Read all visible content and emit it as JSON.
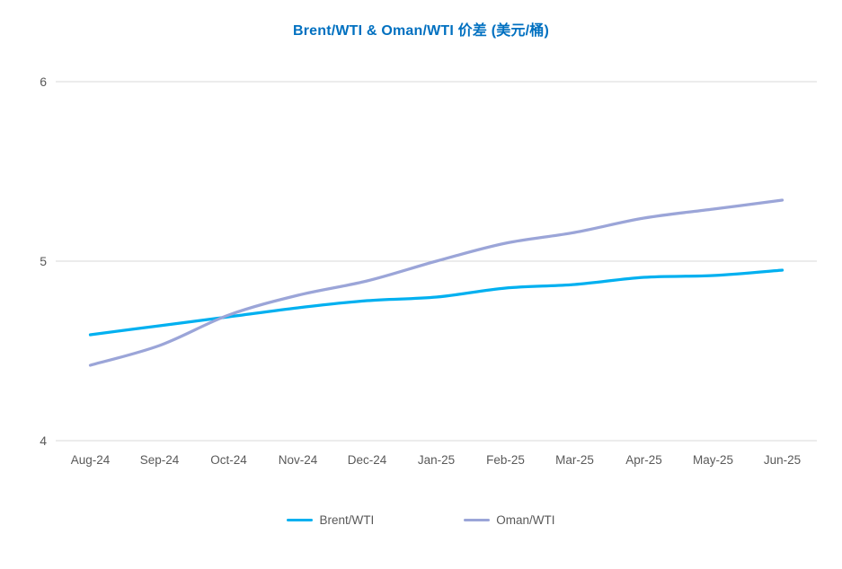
{
  "colors": {
    "title": "#0070C0",
    "axis_text": "#595959",
    "gridline": "#D9D9D9",
    "background": "#FFFFFF"
  },
  "chart_data": {
    "type": "line",
    "title": "Brent/WTI & Oman/WTI 价差 (美元/桶)",
    "categories": [
      "Aug-24",
      "Sep-24",
      "Oct-24",
      "Nov-24",
      "Dec-24",
      "Jan-25",
      "Feb-25",
      "Mar-25",
      "Apr-25",
      "May-25",
      "Jun-25"
    ],
    "series": [
      {
        "name": "Brent/WTI",
        "color": "#00B0F0",
        "values": [
          4.59,
          4.64,
          4.69,
          4.74,
          4.78,
          4.8,
          4.85,
          4.87,
          4.91,
          4.92,
          4.95
        ]
      },
      {
        "name": "Oman/WTI",
        "color": "#9BA5D8",
        "values": [
          4.42,
          4.53,
          4.7,
          4.81,
          4.89,
          5.0,
          5.1,
          5.16,
          5.24,
          5.29,
          5.34
        ]
      }
    ],
    "xlabel": "",
    "ylabel": "",
    "ylim": [
      4,
      6
    ],
    "yticks": [
      6,
      5,
      4
    ],
    "grid": true,
    "legend_position": "bottom",
    "line_style": "smooth"
  }
}
